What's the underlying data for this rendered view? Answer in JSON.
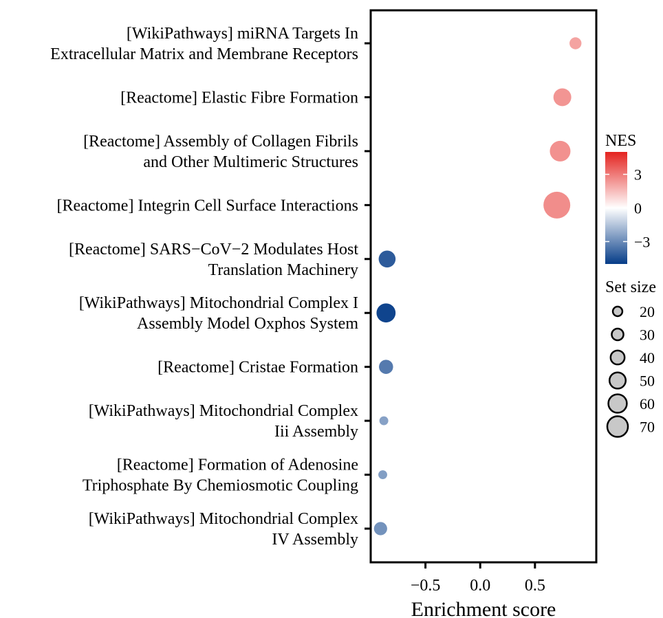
{
  "chart_data": {
    "type": "scatter",
    "title": "",
    "xlabel": "Enrichment score",
    "ylabel": "",
    "xlim": [
      -1.0,
      1.06
    ],
    "x_ticks": [
      -0.5,
      0.0,
      0.5
    ],
    "x_tick_labels": [
      "−0.5",
      "0.0",
      "0.5"
    ],
    "grid": false,
    "categories": [
      [
        "[WikiPathways] miRNA Targets In",
        "Extracellular Matrix and Membrane Receptors"
      ],
      [
        "[Reactome] Elastic Fibre Formation"
      ],
      [
        "[Reactome] Assembly of Collagen Fibrils",
        "and Other Multimeric Structures"
      ],
      [
        "[Reactome] Integrin Cell Surface Interactions"
      ],
      [
        "[Reactome] SARS−CoV−2 Modulates Host",
        "Translation Machinery"
      ],
      [
        "[WikiPathways] Mitochondrial Complex I",
        "Assembly Model Oxphos System"
      ],
      [
        "[Reactome] Cristae Formation"
      ],
      [
        "[WikiPathways] Mitochondrial Complex",
        "Iii Assembly"
      ],
      [
        "[Reactome] Formation of Adenosine",
        "Triphosphate By Chemiosmotic Coupling"
      ],
      [
        "[WikiPathways] Mitochondrial Complex",
        "IV Assembly"
      ]
    ],
    "points": [
      {
        "x": 0.87,
        "set_size": 22,
        "nes": 2.1
      },
      {
        "x": 0.75,
        "set_size": 41,
        "nes": 2.4
      },
      {
        "x": 0.73,
        "set_size": 50,
        "nes": 2.5
      },
      {
        "x": 0.7,
        "set_size": 70,
        "nes": 2.6
      },
      {
        "x": -0.85,
        "set_size": 38,
        "nes": -4.2
      },
      {
        "x": -0.86,
        "set_size": 45,
        "nes": -4.8
      },
      {
        "x": -0.86,
        "set_size": 29,
        "nes": -3.4
      },
      {
        "x": -0.88,
        "set_size": 12,
        "nes": -2.4
      },
      {
        "x": -0.89,
        "set_size": 12,
        "nes": -2.5
      },
      {
        "x": -0.91,
        "set_size": 26,
        "nes": -2.8
      }
    ],
    "color_legend": {
      "title": "NES",
      "min": -5,
      "max": 5,
      "ticks": [
        3,
        0,
        -3
      ],
      "tick_labels": [
        "3",
        "0",
        "−3"
      ],
      "low_color": "#053C88",
      "mid_color": "#FFFFFF",
      "high_color": "#E4231F"
    },
    "size_legend": {
      "title": "Set size",
      "values": [
        20,
        30,
        40,
        50,
        60,
        70
      ],
      "labels": [
        "20",
        "30",
        "40",
        "50",
        "60",
        "70"
      ]
    },
    "legend_placement": "right"
  }
}
